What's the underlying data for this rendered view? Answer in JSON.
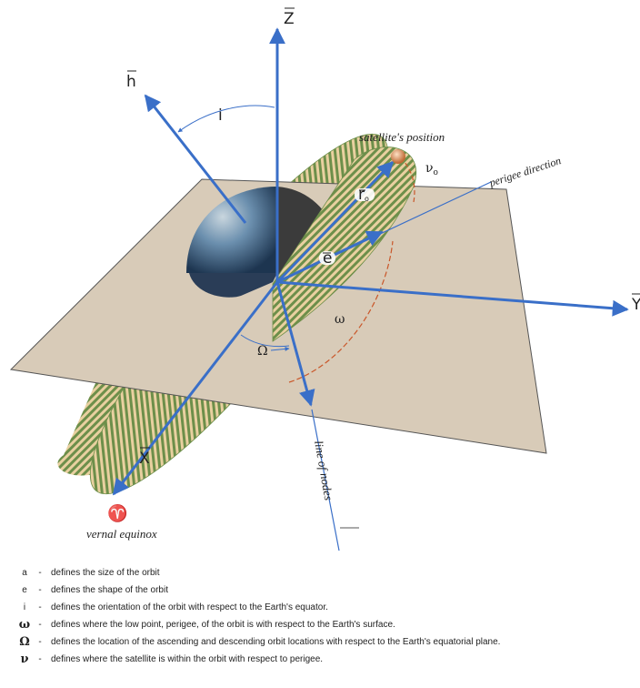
{
  "axes": {
    "z_label": "Z",
    "y_label": "Y",
    "x_label": "X",
    "h_label": "h"
  },
  "labels": {
    "inclination": "i",
    "satellite_position": "satellite's position",
    "perigee_direction": "perigee direction",
    "true_anomaly": "ν",
    "true_anomaly_sub": "o",
    "radius_vector": "r",
    "radius_sub": "o",
    "eccentricity_vector": "e",
    "arg_perigee": "ω",
    "raan": "Ω",
    "line_of_nodes": "line of nodes",
    "vernal_equinox_symbol": "♈",
    "vernal_equinox": "vernal equinox"
  },
  "legend": [
    {
      "symbol": "a",
      "dash": "-",
      "text": "defines the size of the orbit"
    },
    {
      "symbol": "e",
      "dash": "-",
      "text": "defines the shape of the orbit"
    },
    {
      "symbol": "i",
      "dash": "-",
      "text": "defines the orientation of the orbit with respect to the Earth's equator."
    },
    {
      "symbol": "ω",
      "dash": "-",
      "text": "defines where the low point, perigee, of the orbit is with respect to the Earth's surface."
    },
    {
      "symbol": "Ω",
      "dash": "-",
      "text": "defines the location of the ascending and descending orbit locations with respect to the Earth's equatorial plane."
    },
    {
      "symbol": "ν",
      "dash": "-",
      "text": "defines where the satellite is within the orbit with respect to perigee."
    }
  ],
  "colors": {
    "axis": "#3a6fc8",
    "plane": "#d8cbb8",
    "orbit": "#6d8f4a",
    "orbit_stripe": "#e9d0a0",
    "arc": "#c9572a",
    "earth_dark": "#3b3b3b",
    "earth_blue": "#4d7fb3"
  }
}
